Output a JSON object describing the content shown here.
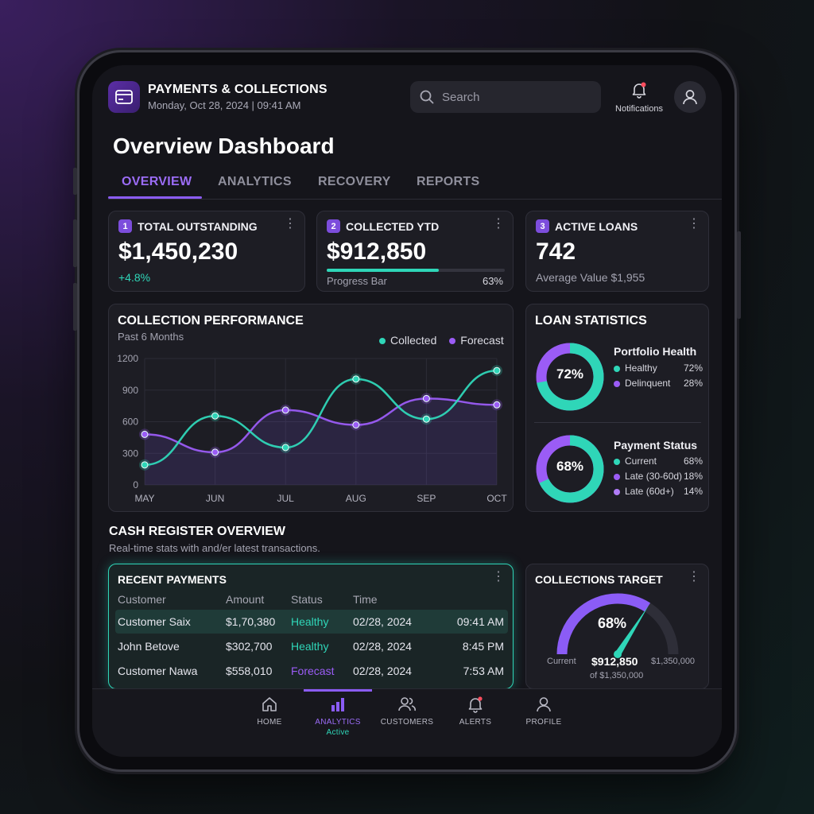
{
  "header": {
    "app_title": "PAYMENTS & COLLECTIONS",
    "date": "Monday, Oct 28, 2024 | 09:41 AM",
    "search_placeholder": "Search",
    "notifications_label": "Notifications"
  },
  "page_title": "Overview Dashboard",
  "tabs": [
    {
      "label": "OVERVIEW",
      "active": true
    },
    {
      "label": "ANALYTICS"
    },
    {
      "label": "RECOVERY"
    },
    {
      "label": "REPORTS"
    }
  ],
  "kpis": [
    {
      "badge": "1",
      "title": "TOTAL OUTSTANDING",
      "value": "$1,450,230",
      "delta": "+4.8%"
    },
    {
      "badge": "2",
      "title": "COLLECTED YTD",
      "value": "$912,850",
      "progress_label": "Progress Bar",
      "progress_text": "63%",
      "progress": 0.63
    },
    {
      "badge": "3",
      "title": "ACTIVE LOANS",
      "value": "742",
      "sub": "Average Value $1,955"
    }
  ],
  "performance": {
    "title": "COLLECTION PERFORMANCE",
    "subtitle": "Past 6 Months"
  },
  "chart_data": {
    "type": "line",
    "x": [
      "MAY",
      "JUN",
      "JUL",
      "AUG",
      "SEP",
      "OCT"
    ],
    "yticks": [
      "1200",
      "900",
      "600",
      "300",
      "0"
    ],
    "ylim": [
      0,
      1200
    ],
    "series": [
      {
        "name": "Collected",
        "color": "#2fd6b8",
        "values": [
          190,
          655,
          355,
          1005,
          625,
          1085
        ]
      },
      {
        "name": "Forecast",
        "color": "#9b5cf6",
        "values": [
          480,
          310,
          710,
          570,
          820,
          760
        ]
      }
    ],
    "grid": true,
    "legend": "top-right"
  },
  "loan_stats": {
    "title": "LOAN STATISTICS",
    "portfolio": {
      "title": "Portfolio Health",
      "center": "72%",
      "value": 0.72,
      "items": [
        {
          "label": "Healthy",
          "value": "72%",
          "color": "#2fd6b8"
        },
        {
          "label": "Delinquent",
          "value": "28%",
          "color": "#9b5cf6"
        }
      ]
    },
    "payment": {
      "title": "Payment Status",
      "center": "68%",
      "value": 0.68,
      "items": [
        {
          "label": "Current",
          "value": "68%",
          "color": "#2fd6b8"
        },
        {
          "label": "Late (30-60d)",
          "value": "18%",
          "color": "#9b5cf6"
        },
        {
          "label": "Late (60d+)",
          "value": "14%",
          "color": "#b07cf7"
        }
      ]
    }
  },
  "cash_register": {
    "title": "CASH REGISTER OVERVIEW",
    "subtitle": "Real-time stats with and/er latest transactions."
  },
  "recent_payments": {
    "title": "RECENT PAYMENTS",
    "columns": [
      "Customer",
      "Amount",
      "Status",
      "Time"
    ],
    "rows": [
      {
        "customer": "Customer Saix",
        "amount": "$1,70,380",
        "status": "Healthy",
        "date": "02/28, 2024",
        "time": "09:41 AM"
      },
      {
        "customer": "John Betove",
        "amount": "$302,700",
        "status": "Healthy",
        "date": "02/28, 2024",
        "time": "8:45 PM"
      },
      {
        "customer": "Customer Nawa",
        "amount": "$558,010",
        "status": "Forecast",
        "date": "02/28, 2024",
        "time": "7:53 AM"
      }
    ]
  },
  "target": {
    "title": "COLLECTIONS TARGET",
    "percent": "68%",
    "value": 0.68,
    "current_label": "Current",
    "amount": "$912,850",
    "of_label": "of $1,350,000",
    "max_label": "$1,350,000"
  },
  "bottom_nav": [
    {
      "label": "HOME",
      "icon": "home-icon"
    },
    {
      "label": "ANALYTICS",
      "icon": "bar-chart-icon",
      "active": true,
      "sub": "Active"
    },
    {
      "label": "CUSTOMERS",
      "icon": "users-icon"
    },
    {
      "label": "ALERTS",
      "icon": "bell-icon"
    },
    {
      "label": "PROFILE",
      "icon": "user-icon"
    }
  ],
  "colors": {
    "teal": "#2fd6b8",
    "purple": "#9b5cf6"
  }
}
